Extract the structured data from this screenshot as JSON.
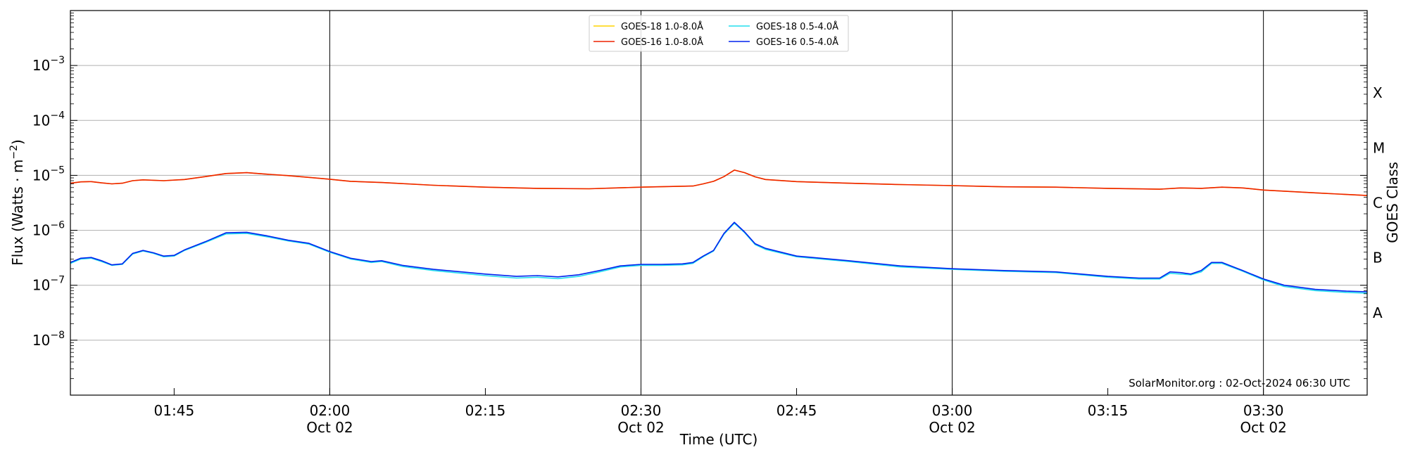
{
  "chart_data": {
    "type": "line",
    "xlabel": "Time (UTC)",
    "ylabel_main": "Flux (Watts · m",
    "ylabel_exp": "−2",
    "ylabel_end": ")",
    "y2label": "GOES Class",
    "yscale": "log",
    "ylim": [
      1e-09,
      0.01
    ],
    "xlim": [
      "01:35",
      "03:40"
    ],
    "grid": "horizontal at decades",
    "legend_position": "top-center",
    "credit": "SolarMonitor.org : 02-Oct-2024 06:30 UTC",
    "yticks": [
      {
        "value": 0.001,
        "base": "10",
        "exp": "−3"
      },
      {
        "value": 0.0001,
        "base": "10",
        "exp": "−4"
      },
      {
        "value": 1e-05,
        "base": "10",
        "exp": "−5"
      },
      {
        "value": 1e-06,
        "base": "10",
        "exp": "−6"
      },
      {
        "value": 1e-07,
        "base": "10",
        "exp": "−7"
      },
      {
        "value": 1e-08,
        "base": "10",
        "exp": "−8"
      }
    ],
    "xticks": [
      {
        "time": "01:45",
        "label": "01:45",
        "sublabel": ""
      },
      {
        "time": "02:00",
        "label": "02:00",
        "sublabel": "Oct 02"
      },
      {
        "time": "02:15",
        "label": "02:15",
        "sublabel": ""
      },
      {
        "time": "02:30",
        "label": "02:30",
        "sublabel": "Oct 02"
      },
      {
        "time": "02:45",
        "label": "02:45",
        "sublabel": ""
      },
      {
        "time": "03:00",
        "label": "03:00",
        "sublabel": "Oct 02"
      },
      {
        "time": "03:15",
        "label": "03:15",
        "sublabel": ""
      },
      {
        "time": "03:30",
        "label": "03:30",
        "sublabel": "Oct 02"
      }
    ],
    "vlines": [
      "02:00",
      "02:30",
      "03:00",
      "03:30"
    ],
    "goes_classes": [
      {
        "label": "X",
        "value": 0.000316
      },
      {
        "label": "M",
        "value": 3.16e-05
      },
      {
        "label": "C",
        "value": 3.16e-06
      },
      {
        "label": "B",
        "value": 3.16e-07
      },
      {
        "label": "A",
        "value": 3.16e-08
      }
    ],
    "series": [
      {
        "name": "GOES-18 1.0-8.0Å",
        "color": "#ffd400",
        "x": [
          "01:35",
          "01:36",
          "01:37",
          "01:38",
          "01:39",
          "01:40",
          "01:41",
          "01:42",
          "01:44",
          "01:46",
          "01:48",
          "01:50",
          "01:52",
          "01:54",
          "01:56",
          "01:58",
          "02:00",
          "02:02",
          "02:05",
          "02:10",
          "02:15",
          "02:20",
          "02:25",
          "02:30",
          "02:35",
          "02:36",
          "02:37",
          "02:38",
          "02:39",
          "02:40",
          "02:41",
          "02:42",
          "02:45",
          "02:50",
          "02:55",
          "03:00",
          "03:05",
          "03:10",
          "03:15",
          "03:20",
          "03:22",
          "03:24",
          "03:26",
          "03:28",
          "03:30",
          "03:35",
          "03:40"
        ],
        "y": [
          7.2e-06,
          7.6e-06,
          7.7e-06,
          7.3e-06,
          7e-06,
          7.2e-06,
          8e-06,
          8.3e-06,
          8e-06,
          8.4e-06,
          9.5e-06,
          1.08e-05,
          1.12e-05,
          1.05e-05,
          9.9e-06,
          9.2e-06,
          8.5e-06,
          7.8e-06,
          7.4e-06,
          6.6e-06,
          6.1e-06,
          5.8e-06,
          5.7e-06,
          6.1e-06,
          6.4e-06,
          7e-06,
          7.8e-06,
          9.5e-06,
          1.25e-05,
          1.12e-05,
          9.4e-06,
          8.4e-06,
          7.7e-06,
          7.2e-06,
          6.8e-06,
          6.5e-06,
          6.2e-06,
          6.1e-06,
          5.8e-06,
          5.6e-06,
          5.9e-06,
          5.8e-06,
          6.1e-06,
          5.9e-06,
          5.4e-06,
          4.8e-06,
          4.3e-06
        ]
      },
      {
        "name": "GOES-16 1.0-8.0Å",
        "color": "#ee2200",
        "x": [
          "01:35",
          "01:36",
          "01:37",
          "01:38",
          "01:39",
          "01:40",
          "01:41",
          "01:42",
          "01:44",
          "01:46",
          "01:48",
          "01:50",
          "01:52",
          "01:54",
          "01:56",
          "01:58",
          "02:00",
          "02:02",
          "02:05",
          "02:10",
          "02:15",
          "02:20",
          "02:25",
          "02:30",
          "02:35",
          "02:36",
          "02:37",
          "02:38",
          "02:39",
          "02:40",
          "02:41",
          "02:42",
          "02:45",
          "02:50",
          "02:55",
          "03:00",
          "03:05",
          "03:10",
          "03:15",
          "03:20",
          "03:22",
          "03:24",
          "03:26",
          "03:28",
          "03:30",
          "03:35",
          "03:40"
        ],
        "y": [
          7.2e-06,
          7.6e-06,
          7.7e-06,
          7.3e-06,
          7e-06,
          7.2e-06,
          8e-06,
          8.3e-06,
          8e-06,
          8.4e-06,
          9.5e-06,
          1.08e-05,
          1.12e-05,
          1.05e-05,
          9.9e-06,
          9.2e-06,
          8.5e-06,
          7.8e-06,
          7.4e-06,
          6.6e-06,
          6.1e-06,
          5.8e-06,
          5.7e-06,
          6.1e-06,
          6.4e-06,
          7e-06,
          7.8e-06,
          9.5e-06,
          1.25e-05,
          1.12e-05,
          9.4e-06,
          8.4e-06,
          7.7e-06,
          7.2e-06,
          6.8e-06,
          6.5e-06,
          6.2e-06,
          6.1e-06,
          5.8e-06,
          5.6e-06,
          5.9e-06,
          5.8e-06,
          6.1e-06,
          5.9e-06,
          5.4e-06,
          4.8e-06,
          4.3e-06
        ]
      },
      {
        "name": "GOES-18 0.5-4.0Å",
        "color": "#22ddee",
        "x": [
          "01:35",
          "01:36",
          "01:37",
          "01:38",
          "01:39",
          "01:40",
          "01:41",
          "01:42",
          "01:43",
          "01:44",
          "01:45",
          "01:46",
          "01:48",
          "01:50",
          "01:52",
          "01:54",
          "01:56",
          "01:58",
          "02:00",
          "02:02",
          "02:04",
          "02:05",
          "02:07",
          "02:10",
          "02:15",
          "02:18",
          "02:20",
          "02:22",
          "02:24",
          "02:26",
          "02:28",
          "02:30",
          "02:32",
          "02:34",
          "02:35",
          "02:36",
          "02:37",
          "02:38",
          "02:39",
          "02:40",
          "02:41",
          "02:42",
          "02:45",
          "02:50",
          "02:55",
          "03:00",
          "03:05",
          "03:10",
          "03:15",
          "03:18",
          "03:20",
          "03:21",
          "03:22",
          "03:23",
          "03:24",
          "03:25",
          "03:26",
          "03:28",
          "03:30",
          "03:32",
          "03:35",
          "03:38",
          "03:40"
        ],
        "y": [
          2.5e-07,
          3e-07,
          3.1e-07,
          2.7e-07,
          2.3e-07,
          2.4e-07,
          3.7e-07,
          4.2e-07,
          3.8e-07,
          3.3e-07,
          3.4e-07,
          4.3e-07,
          6e-07,
          8.6e-07,
          8.8e-07,
          7.6e-07,
          6.4e-07,
          5.6e-07,
          4e-07,
          3e-07,
          2.6e-07,
          2.7e-07,
          2.2e-07,
          1.85e-07,
          1.5e-07,
          1.35e-07,
          1.4e-07,
          1.32e-07,
          1.45e-07,
          1.75e-07,
          2.15e-07,
          2.3e-07,
          2.3e-07,
          2.35e-07,
          2.5e-07,
          3.3e-07,
          4.2e-07,
          8.5e-07,
          1.35e-06,
          9e-07,
          5.5e-07,
          4.5e-07,
          3.3e-07,
          2.7e-07,
          2.15e-07,
          1.95e-07,
          1.8e-07,
          1.7e-07,
          1.4e-07,
          1.3e-07,
          1.3e-07,
          1.65e-07,
          1.6e-07,
          1.55e-07,
          1.75e-07,
          2.5e-07,
          2.5e-07,
          1.8e-07,
          1.25e-07,
          9.5e-08,
          8e-08,
          7.4e-08,
          7.2e-08
        ]
      },
      {
        "name": "GOES-16 0.5-4.0Å",
        "color": "#0022ee",
        "x": [
          "01:35",
          "01:36",
          "01:37",
          "01:38",
          "01:39",
          "01:40",
          "01:41",
          "01:42",
          "01:43",
          "01:44",
          "01:45",
          "01:46",
          "01:48",
          "01:50",
          "01:52",
          "01:54",
          "01:56",
          "01:58",
          "02:00",
          "02:02",
          "02:04",
          "02:05",
          "02:07",
          "02:10",
          "02:15",
          "02:18",
          "02:20",
          "02:22",
          "02:24",
          "02:26",
          "02:28",
          "02:30",
          "02:32",
          "02:34",
          "02:35",
          "02:36",
          "02:37",
          "02:38",
          "02:39",
          "02:40",
          "02:41",
          "02:42",
          "02:45",
          "02:50",
          "02:55",
          "03:00",
          "03:05",
          "03:10",
          "03:15",
          "03:18",
          "03:20",
          "03:21",
          "03:22",
          "03:23",
          "03:24",
          "03:25",
          "03:26",
          "03:28",
          "03:30",
          "03:32",
          "03:35",
          "03:38",
          "03:40"
        ],
        "y": [
          2.6e-07,
          3.1e-07,
          3.2e-07,
          2.8e-07,
          2.35e-07,
          2.45e-07,
          3.8e-07,
          4.3e-07,
          3.9e-07,
          3.4e-07,
          3.5e-07,
          4.4e-07,
          6.2e-07,
          9e-07,
          9.2e-07,
          7.9e-07,
          6.6e-07,
          5.8e-07,
          4.1e-07,
          3.1e-07,
          2.7e-07,
          2.8e-07,
          2.3e-07,
          1.95e-07,
          1.6e-07,
          1.45e-07,
          1.5e-07,
          1.42e-07,
          1.55e-07,
          1.85e-07,
          2.25e-07,
          2.4e-07,
          2.4e-07,
          2.45e-07,
          2.6e-07,
          3.4e-07,
          4.3e-07,
          8.8e-07,
          1.4e-06,
          9.3e-07,
          5.7e-07,
          4.7e-07,
          3.4e-07,
          2.8e-07,
          2.25e-07,
          2e-07,
          1.85e-07,
          1.75e-07,
          1.45e-07,
          1.35e-07,
          1.35e-07,
          1.75e-07,
          1.7e-07,
          1.6e-07,
          1.85e-07,
          2.6e-07,
          2.6e-07,
          1.85e-07,
          1.3e-07,
          1e-07,
          8.4e-08,
          7.8e-08,
          7.6e-08
        ]
      }
    ]
  }
}
